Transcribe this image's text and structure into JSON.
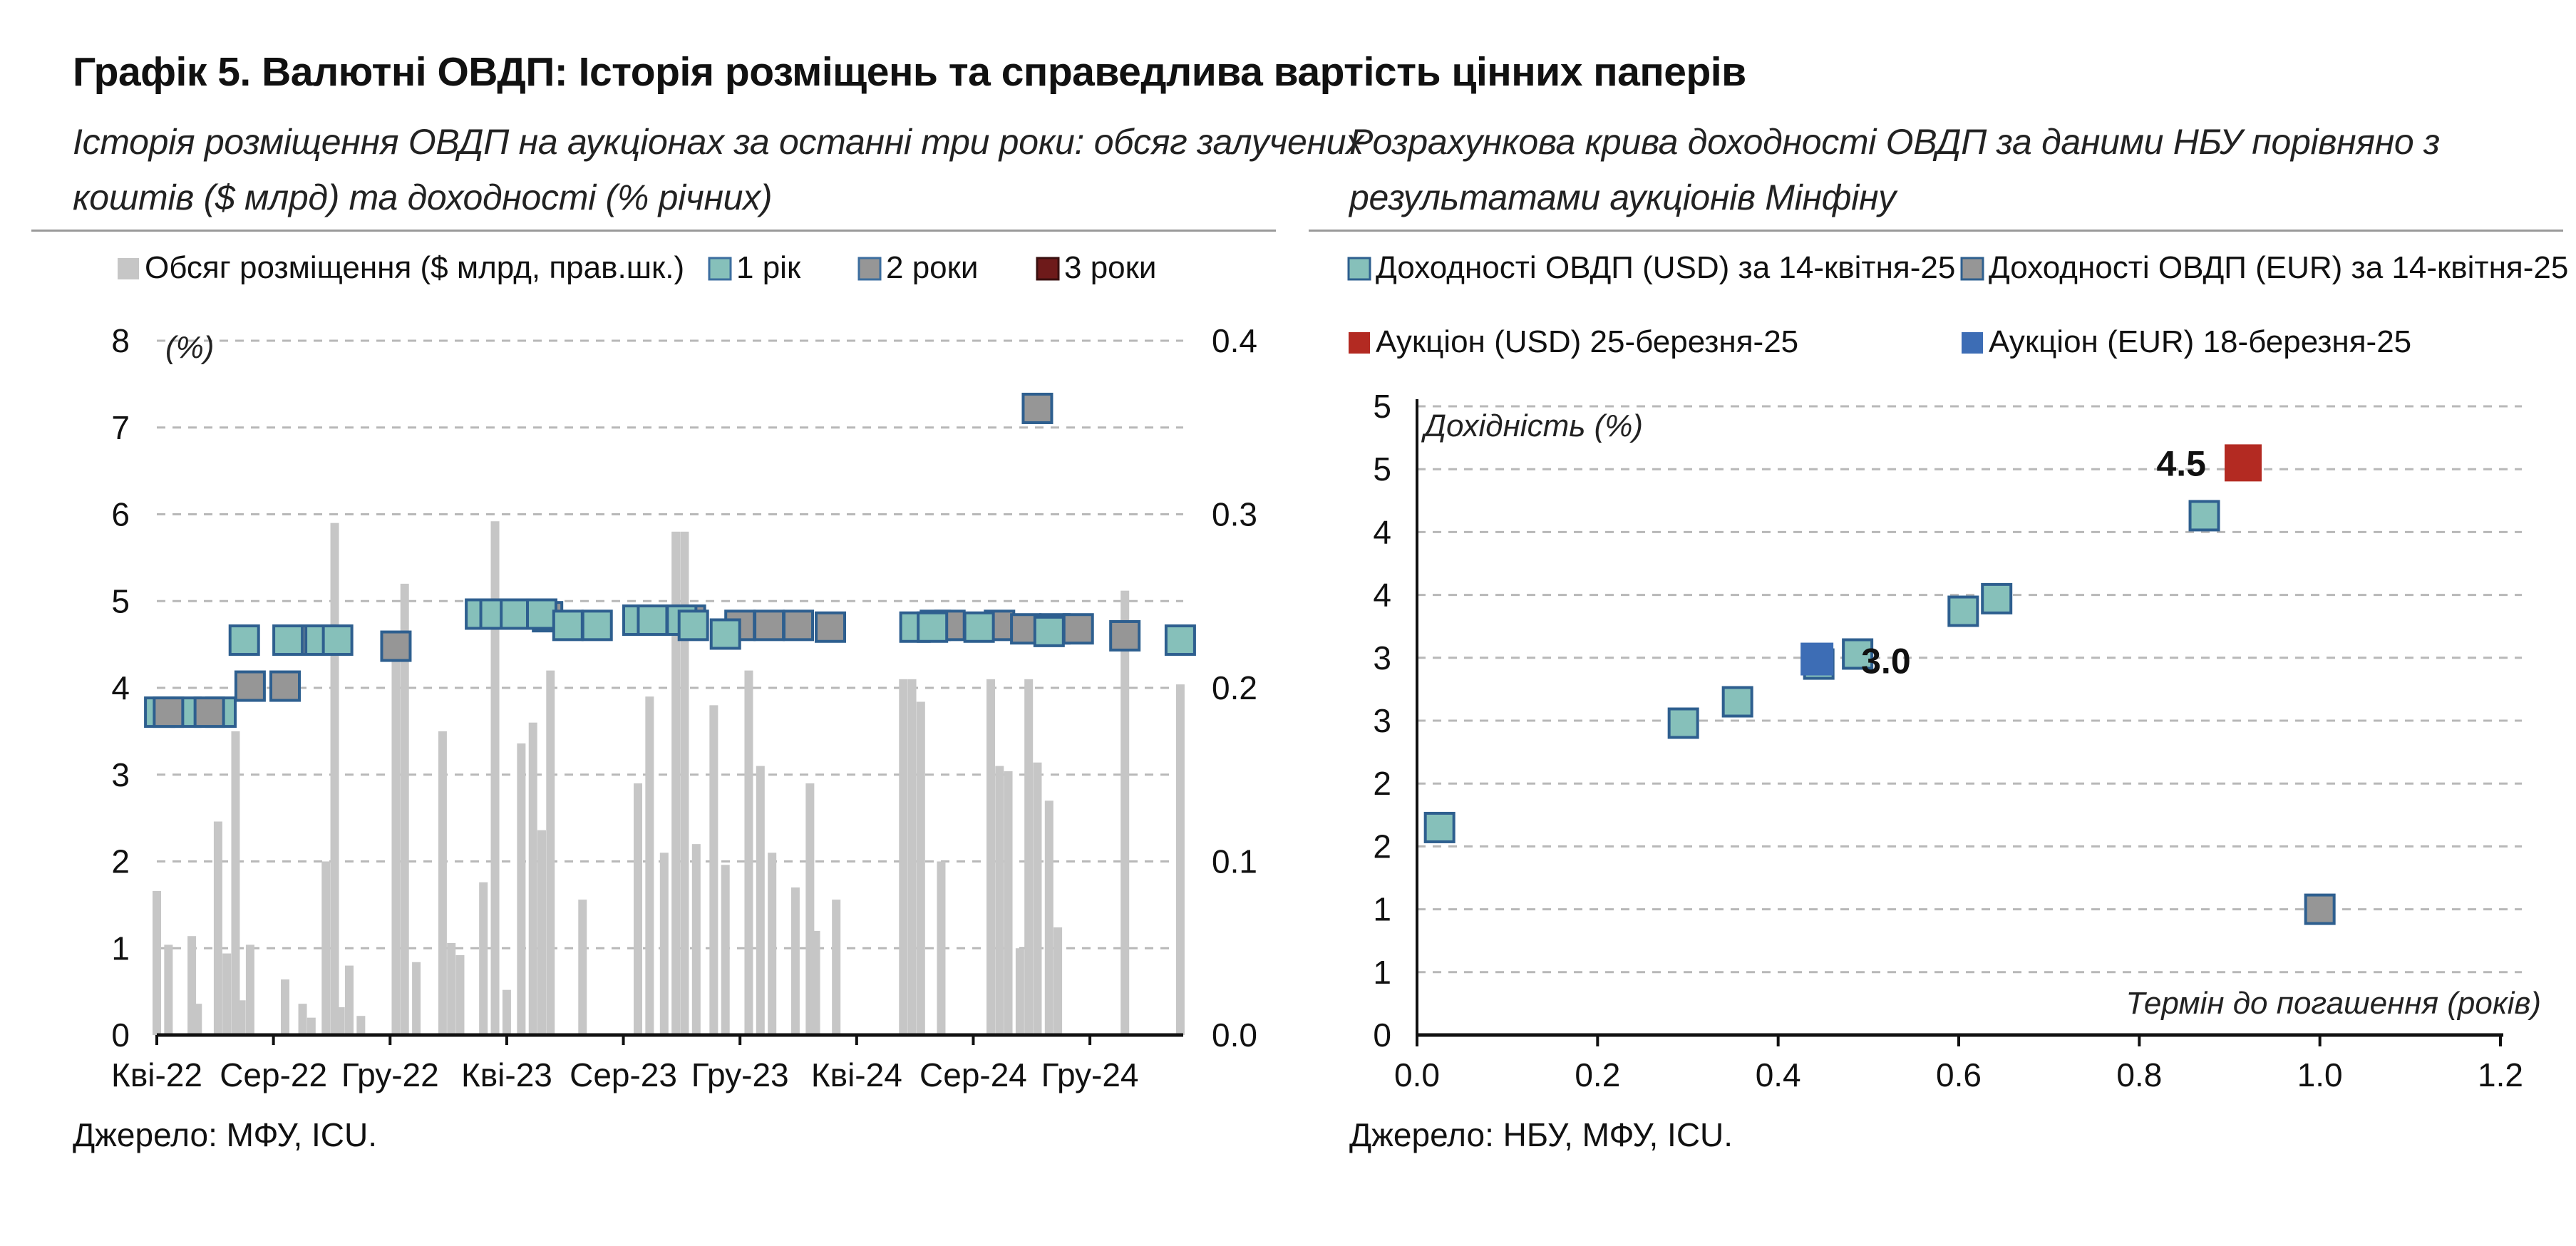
{
  "header": {
    "title": "Графік 5. Валютні ОВДП: Історія розміщень та справедлива вартість цінних паперів"
  },
  "left": {
    "subtitle_line1": "Історія розміщення ОВДП на аукціонах за останні три роки: обсяг залучених",
    "subtitle_line2": "коштів ($ млрд) та доходності (% річних)",
    "source": "Джерело: МФУ, ICU."
  },
  "right": {
    "subtitle_line1": "Розрахункова крива доходності ОВДП за даними НБУ порівняно з",
    "subtitle_line2": "результатами аукціонів Мінфіну",
    "source": "Джерело: НБУ, МФУ, ICU."
  },
  "chart_data": [
    {
      "type": "bar+scatter",
      "legend": [
        {
          "name": "Обсяг розміщення ($ млрд, прав.шк.)",
          "color": "#c6c6c6"
        },
        {
          "name": "1 рік",
          "color": "#86c0ba"
        },
        {
          "name": "2 роки",
          "color": "#969696"
        },
        {
          "name": "3 роки",
          "color": "#6e1a1a"
        }
      ],
      "y_left_label": "(%)",
      "y_left_ticks": [
        "0",
        "1",
        "2",
        "3",
        "4",
        "5",
        "6",
        "7",
        "8"
      ],
      "y_left_range": [
        0,
        8
      ],
      "y_right_ticks": [
        "0.0",
        "0.1",
        "0.2",
        "0.3",
        "0.4"
      ],
      "y_right_range": [
        0,
        0.4
      ],
      "x_range": [
        0,
        35.2
      ],
      "x_ticks": [
        {
          "label": "Кві-22",
          "x": 0
        },
        {
          "label": "Сер-22",
          "x": 4
        },
        {
          "label": "Гру-22",
          "x": 8
        },
        {
          "label": "Кві-23",
          "x": 12
        },
        {
          "label": "Сер-23",
          "x": 16
        },
        {
          "label": "Гру-23",
          "x": 20
        },
        {
          "label": "Кві-24",
          "x": 24
        },
        {
          "label": "Сер-24",
          "x": 28
        },
        {
          "label": "Гру-24",
          "x": 32
        }
      ],
      "volume": [
        [
          0.0,
          0.083
        ],
        [
          0.4,
          0.052
        ],
        [
          1.2,
          0.057
        ],
        [
          1.4,
          0.018
        ],
        [
          2.1,
          0.123
        ],
        [
          2.4,
          0.047
        ],
        [
          2.7,
          0.175
        ],
        [
          2.9,
          0.02
        ],
        [
          3.2,
          0.052
        ],
        [
          4.4,
          0.032
        ],
        [
          5.0,
          0.018
        ],
        [
          5.3,
          0.01
        ],
        [
          5.8,
          0.1
        ],
        [
          6.1,
          0.295
        ],
        [
          6.3,
          0.016
        ],
        [
          6.6,
          0.04
        ],
        [
          7.0,
          0.011
        ],
        [
          8.2,
          0.215
        ],
        [
          8.5,
          0.26
        ],
        [
          8.9,
          0.042
        ],
        [
          9.8,
          0.175
        ],
        [
          10.1,
          0.053
        ],
        [
          10.4,
          0.046
        ],
        [
          11.2,
          0.088
        ],
        [
          11.6,
          0.296
        ],
        [
          12.0,
          0.026
        ],
        [
          12.5,
          0.168
        ],
        [
          12.9,
          0.18
        ],
        [
          13.2,
          0.118
        ],
        [
          13.5,
          0.21
        ],
        [
          14.6,
          0.078
        ],
        [
          16.5,
          0.145
        ],
        [
          16.9,
          0.195
        ],
        [
          17.4,
          0.105
        ],
        [
          17.8,
          0.29
        ],
        [
          18.1,
          0.29
        ],
        [
          18.5,
          0.11
        ],
        [
          19.1,
          0.19
        ],
        [
          19.5,
          0.098
        ],
        [
          20.3,
          0.21
        ],
        [
          20.7,
          0.155
        ],
        [
          21.1,
          0.105
        ],
        [
          21.9,
          0.085
        ],
        [
          22.4,
          0.145
        ],
        [
          22.6,
          0.06
        ],
        [
          23.3,
          0.078
        ],
        [
          25.6,
          0.205
        ],
        [
          25.9,
          0.205
        ],
        [
          26.2,
          0.192
        ],
        [
          26.9,
          0.1
        ],
        [
          28.6,
          0.205
        ],
        [
          28.9,
          0.155
        ],
        [
          29.2,
          0.152
        ],
        [
          29.6,
          0.05
        ],
        [
          29.9,
          0.205
        ],
        [
          30.2,
          0.157
        ],
        [
          30.6,
          0.135
        ],
        [
          30.9,
          0.062
        ],
        [
          33.2,
          0.256
        ],
        [
          35.1,
          0.202
        ]
      ],
      "yield_1y": [
        [
          3.0,
          4.55
        ],
        [
          4.5,
          4.55
        ],
        [
          5.6,
          4.55
        ],
        [
          6.2,
          4.55
        ],
        [
          11.1,
          4.85
        ],
        [
          11.6,
          4.85
        ],
        [
          12.3,
          4.85
        ],
        [
          13.2,
          4.85
        ],
        [
          14.1,
          4.72
        ],
        [
          15.1,
          4.72
        ],
        [
          16.5,
          4.78
        ],
        [
          17.0,
          4.78
        ],
        [
          18.0,
          4.78
        ],
        [
          18.4,
          4.72
        ],
        [
          19.5,
          4.62
        ],
        [
          26.0,
          4.7
        ],
        [
          26.6,
          4.7
        ],
        [
          28.2,
          4.7
        ],
        [
          30.6,
          4.65
        ],
        [
          35.1,
          4.55
        ]
      ],
      "yield_2y": [
        [
          0.4,
          3.72
        ],
        [
          1.8,
          3.72
        ],
        [
          3.2,
          4.02
        ],
        [
          4.4,
          4.02
        ],
        [
          5.4,
          4.55
        ],
        [
          8.2,
          4.48
        ],
        [
          13.4,
          4.82
        ],
        [
          18.3,
          4.78
        ],
        [
          20.0,
          4.72
        ],
        [
          21.0,
          4.72
        ],
        [
          22.0,
          4.72
        ],
        [
          23.1,
          4.7
        ],
        [
          26.7,
          4.72
        ],
        [
          27.2,
          4.72
        ],
        [
          28.9,
          4.72
        ],
        [
          29.8,
          4.68
        ],
        [
          30.2,
          7.22
        ],
        [
          30.8,
          4.68
        ],
        [
          31.6,
          4.68
        ],
        [
          33.2,
          4.6
        ]
      ],
      "yield_1y_left": [
        [
          0.1,
          3.72
        ],
        [
          1.0,
          3.72
        ],
        [
          2.2,
          3.72
        ]
      ]
    },
    {
      "type": "scatter",
      "legend": [
        {
          "name": "Доходності ОВДП (USD) за 14-квітня-25",
          "color": "#86c0ba",
          "marker": "square-outline"
        },
        {
          "name": "Доходності ОВДП (EUR) за 14-квітня-25",
          "color": "#969696",
          "marker": "square-outline"
        },
        {
          "name": "Аукціон (USD) 25-березня-25",
          "color": "#b32a22",
          "marker": "square"
        },
        {
          "name": "Аукціон (EUR) 18-березня-25",
          "color": "#3d6db5",
          "marker": "square"
        }
      ],
      "ylabel": "Дохідність (%)",
      "xlabel": "Термін до погашення (років)",
      "y_ticks": [
        "0",
        "1",
        "1",
        "2",
        "2",
        "3",
        "3",
        "4",
        "4",
        "5",
        "5"
      ],
      "y_range": [
        0,
        5
      ],
      "x_ticks": [
        "0.0",
        "0.2",
        "0.4",
        "0.6",
        "0.8",
        "1.0",
        "1.2"
      ],
      "x_range": [
        0,
        1.2
      ],
      "usd_curve": [
        [
          0.025,
          1.65
        ],
        [
          0.295,
          2.48
        ],
        [
          0.355,
          2.65
        ],
        [
          0.445,
          2.95
        ],
        [
          0.488,
          3.03
        ],
        [
          0.605,
          3.37
        ],
        [
          0.642,
          3.47
        ],
        [
          0.872,
          4.13
        ]
      ],
      "eur_curve": [
        [
          1.0,
          1.0
        ]
      ],
      "usd_auction": [
        [
          0.915,
          4.55
        ]
      ],
      "eur_auction": [
        [
          0.443,
          2.99
        ]
      ],
      "annotations": [
        {
          "text": "4.5",
          "x": 0.915,
          "y": 4.55
        },
        {
          "text": "3.0",
          "x": 0.443,
          "y": 2.99
        }
      ]
    }
  ]
}
